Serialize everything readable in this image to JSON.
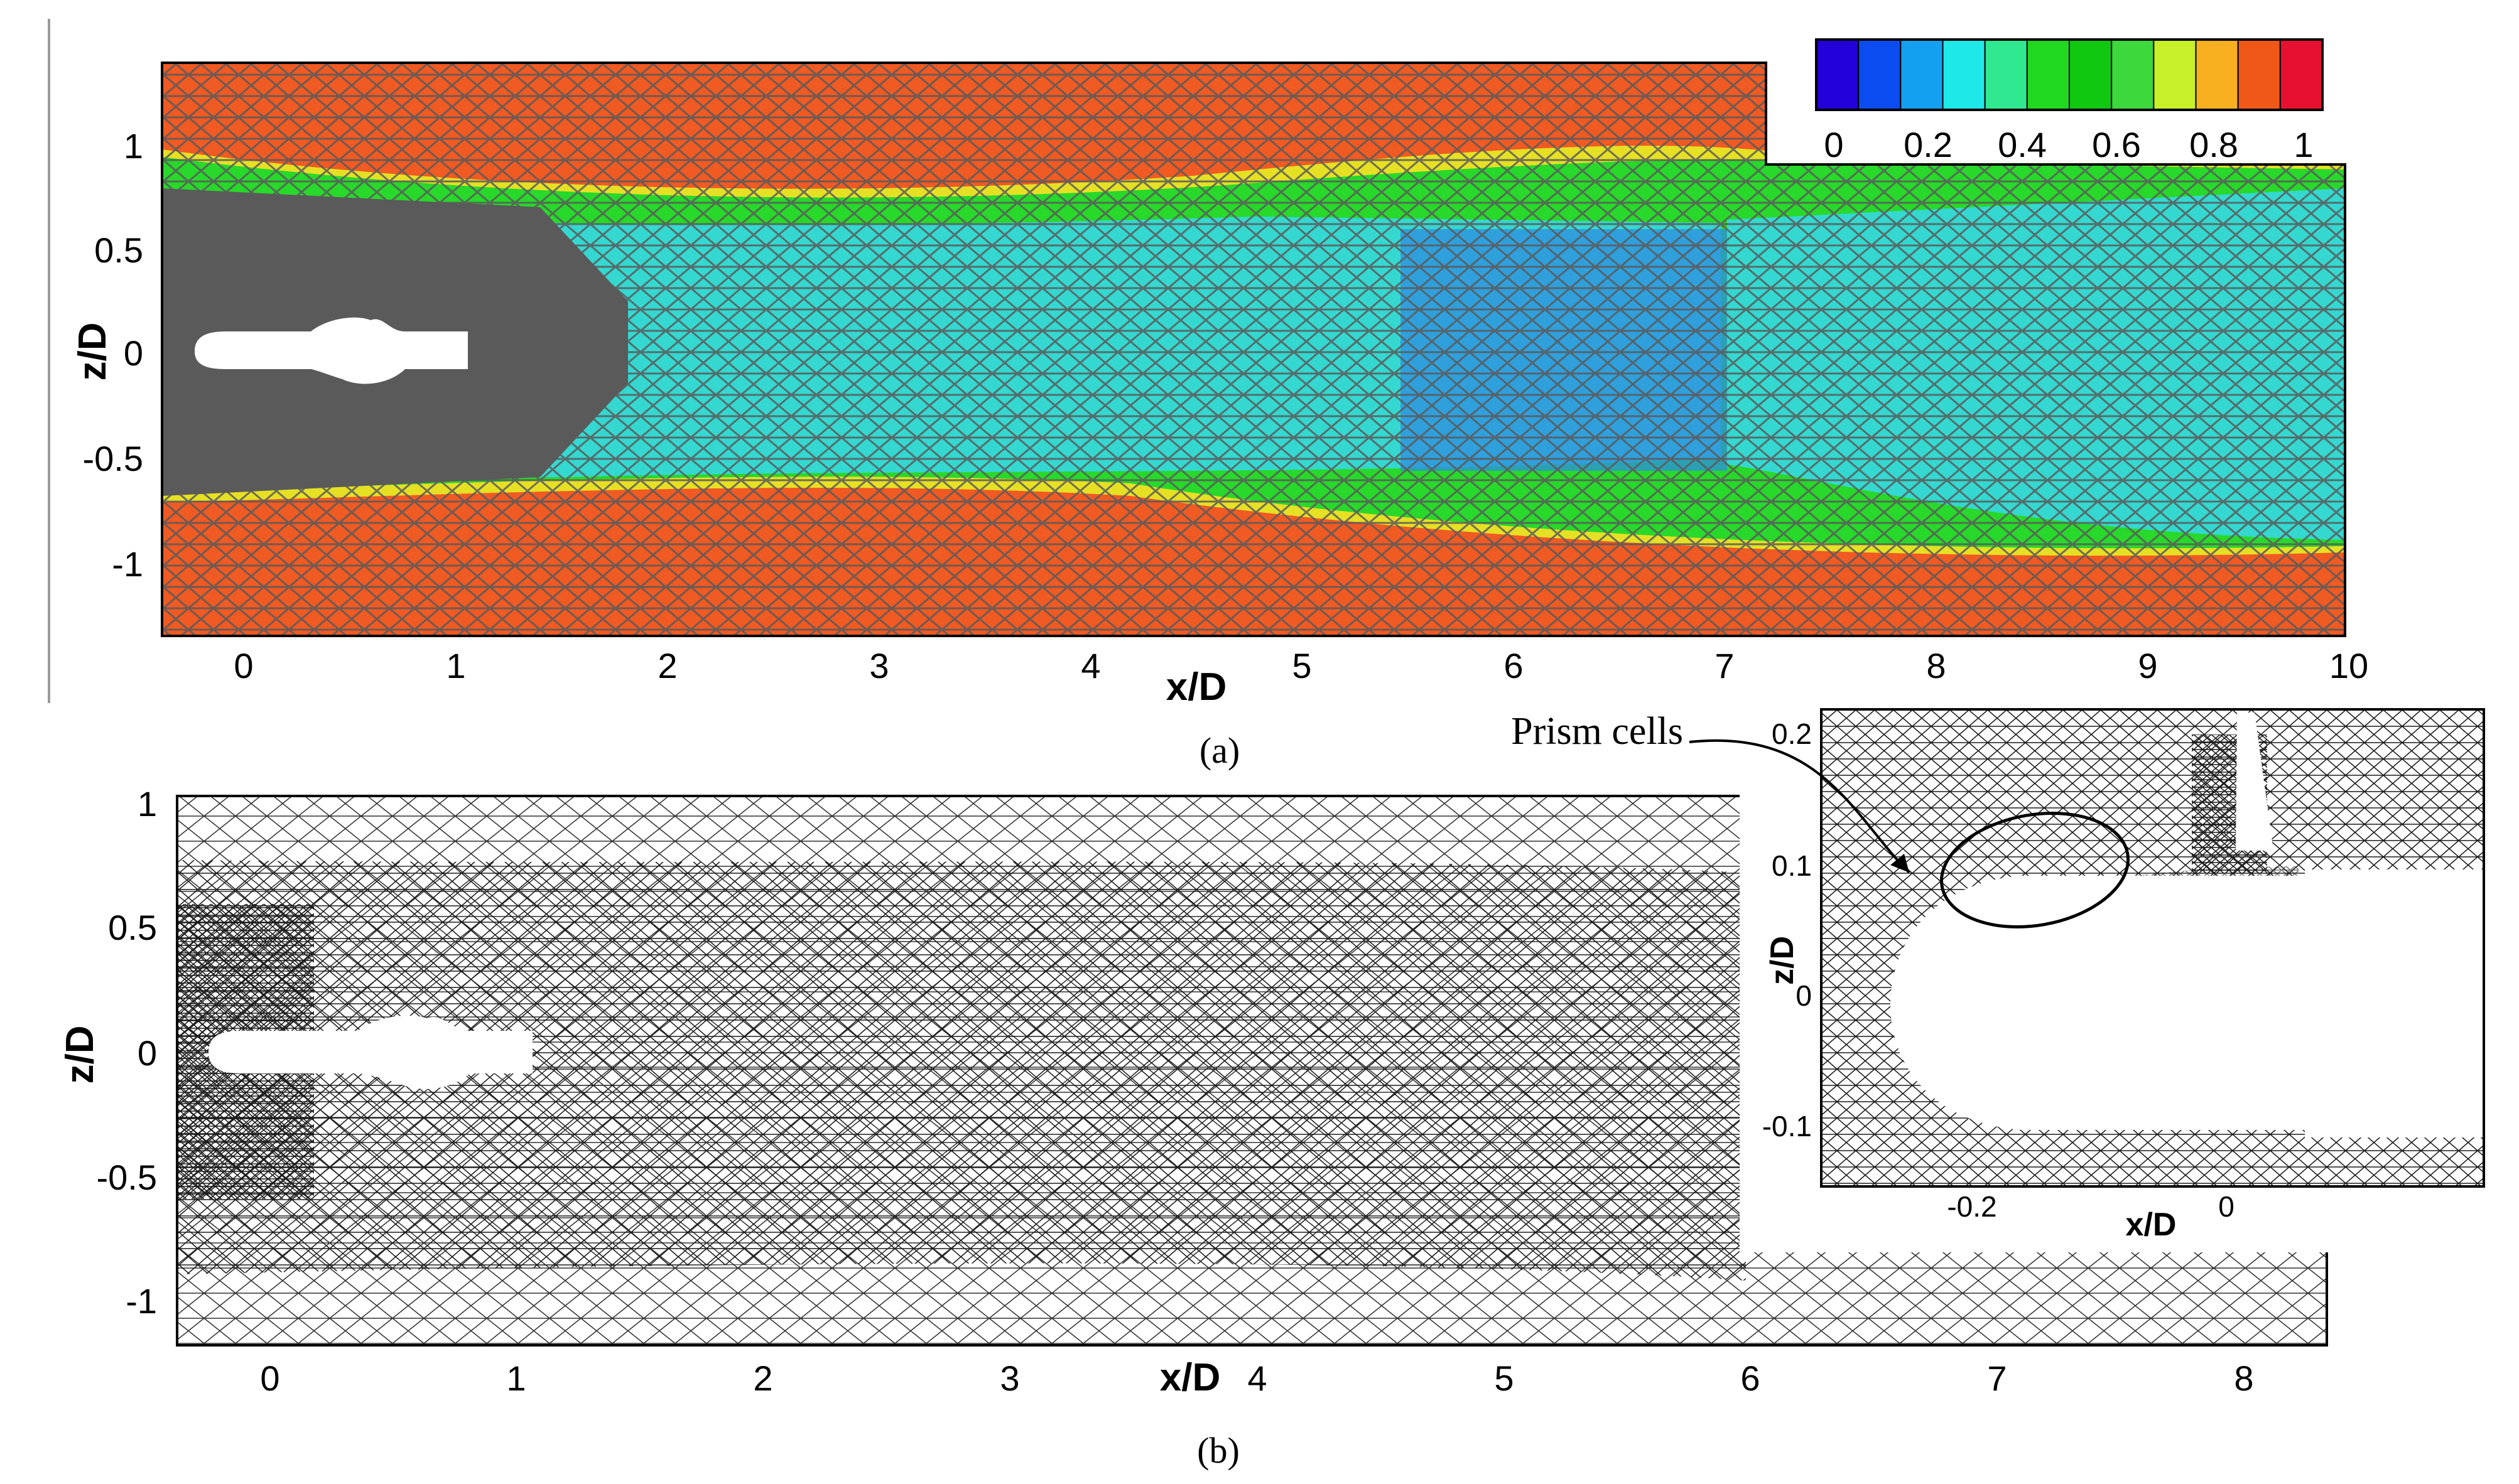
{
  "panel_a": {
    "caption": "(a)",
    "xlabel": "x/D",
    "ylabel": "z/D",
    "xticks": [
      "0",
      "1",
      "2",
      "3",
      "4",
      "5",
      "6",
      "7",
      "8",
      "9",
      "10"
    ],
    "yticks": [
      "1",
      "0.5",
      "0",
      "-0.5",
      "-1"
    ],
    "colorbar_ticks": [
      "0",
      "0.2",
      "0.4",
      "0.6",
      "0.8",
      "1"
    ],
    "colorbar_colors": [
      "#2200d8",
      "#0a4cf0",
      "#14a0f0",
      "#1ee8e8",
      "#30e890",
      "#20d820",
      "#10c810",
      "#3cd83c",
      "#c8f028",
      "#f8b020",
      "#f05818",
      "#e81030"
    ],
    "colors": {
      "outer": "#f05a23",
      "inner_mesh": "#5a5a5a",
      "wake_cyan": "#34d8d0",
      "shear_green": "#28d82a",
      "core_blue": "#2d8ee0",
      "edge_yellow": "#e0e020"
    }
  },
  "panel_b": {
    "caption": "(b)",
    "xlabel": "x/D",
    "ylabel": "z/D",
    "xticks": [
      "0",
      "1",
      "2",
      "3",
      "4",
      "5",
      "6",
      "7",
      "8"
    ],
    "yticks": [
      "1",
      "0.5",
      "0",
      "-0.5",
      "-1"
    ]
  },
  "inset": {
    "xlabel": "x/D",
    "ylabel": "z/D",
    "xticks": [
      "-0.2",
      "0"
    ],
    "yticks": [
      "0.2",
      "0.1",
      "0",
      "-0.1"
    ],
    "annotation": "Prism cells"
  }
}
